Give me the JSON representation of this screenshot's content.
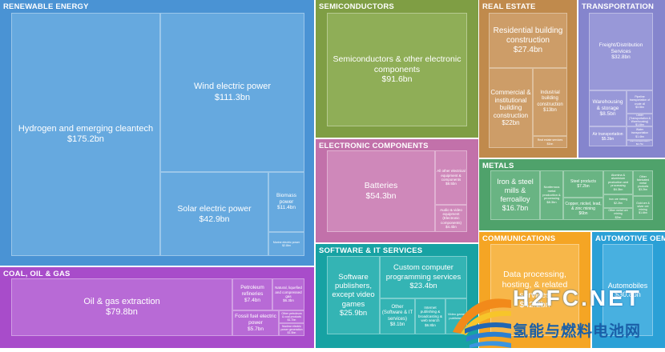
{
  "chart_data": {
    "type": "treemap",
    "value_unit": "$bn",
    "sectors": [
      {
        "name": "RENEWABLE ENERGY",
        "color": "#4a93d4",
        "tile": "#66a9df",
        "children": [
          {
            "name": "Hydrogen and emerging cleantech",
            "label": "$175.2bn",
            "value": 175.2
          },
          {
            "name": "Wind electric power",
            "label": "$111.3bn",
            "value": 111.3
          },
          {
            "name": "Solar electric power",
            "label": "$42.9bn",
            "value": 42.9
          },
          {
            "name": "Biomass power",
            "label": "$11.4bn",
            "value": 11.4
          },
          {
            "name": "Marine electric power",
            "label": "$2.8bn",
            "value": 2.8
          }
        ]
      },
      {
        "name": "COAL, OIL & GAS",
        "color": "#a84cca",
        "tile": "#b86ad6",
        "children": [
          {
            "name": "Oil & gas extraction",
            "label": "$79.8bn",
            "value": 79.8
          },
          {
            "name": "Petroleum refineries",
            "label": "$7.4bn",
            "value": 7.4
          },
          {
            "name": "Natural, liquefied and compressed gas",
            "label": "$6.3bn",
            "value": 6.3
          },
          {
            "name": "Fossil fuel electric power",
            "label": "$5.7bn",
            "value": 5.7
          },
          {
            "name": "Other petroleum & coal products",
            "label": "$1.7bn",
            "value": 1.7
          },
          {
            "name": "Nuclear electric power generation",
            "label": "$1.5bn",
            "value": 1.5
          }
        ]
      },
      {
        "name": "SEMICONDUCTORS",
        "color": "#7f9e44",
        "tile": "#8fae57",
        "children": [
          {
            "name": "Semiconductors & other electronic components",
            "label": "$91.6bn",
            "value": 91.6
          }
        ]
      },
      {
        "name": "ELECTRONIC COMPONENTS",
        "color": "#c271aa",
        "tile": "#cf88ba",
        "children": [
          {
            "name": "Batteries",
            "label": "$54.3bn",
            "value": 54.3
          },
          {
            "name": "All other electrical equipment & components",
            "label": "$8.5bn",
            "value": 8.5
          },
          {
            "name": "Audio & video equipment (Electronic components)",
            "label": "$4.4bn",
            "value": 4.4
          }
        ]
      },
      {
        "name": "SOFTWARE & IT SERVICES",
        "color": "#17a2a3",
        "tile": "#34b4b4",
        "children": [
          {
            "name": "Software publishers, except video games",
            "label": "$25.9bn",
            "value": 25.9
          },
          {
            "name": "Custom computer programming services",
            "label": "$23.4bn",
            "value": 23.4
          },
          {
            "name": "Other (Software & IT services)",
            "label": "$8.1bn",
            "value": 8.1
          },
          {
            "name": "Internet publishing & broadcasting & web search",
            "label": "$6.8bn",
            "value": 6.8
          },
          {
            "name": "Video game publishers",
            "label": "",
            "value": null
          }
        ]
      },
      {
        "name": "REAL ESTATE",
        "color": "#c08a4c",
        "tile": "#cd9d68",
        "children": [
          {
            "name": "Residential building construction",
            "label": "$27.4bn",
            "value": 27.4
          },
          {
            "name": "Commercial & institutional building construction",
            "label": "$22bn",
            "value": 22
          },
          {
            "name": "Industrial building construction",
            "label": "$13bn",
            "value": 13
          },
          {
            "name": "Real estate services",
            "label": "$1bn",
            "value": 1
          }
        ]
      },
      {
        "name": "TRANSPORTATION",
        "color": "#8585cd",
        "tile": "#9898d8",
        "children": [
          {
            "name": "Freight/Distribution Services",
            "label": "$32.8bn",
            "value": 32.8
          },
          {
            "name": "Warehousing & storage",
            "label": "$8.5bn",
            "value": 8.5
          },
          {
            "name": "Pipeline transportation of crude oil",
            "label": "$3.5bn",
            "value": 3.5
          },
          {
            "name": "Other (Transportation & Warehousing)",
            "label": "$1.6bn",
            "value": 1.6
          },
          {
            "name": "Air transportation",
            "label": "$5.3bn",
            "value": 5.3
          },
          {
            "name": "Water transportation",
            "label": "$1.4bn",
            "value": 1.4
          },
          {
            "name": "Rail transportation",
            "label": "$0.7bn",
            "value": 0.7
          }
        ]
      },
      {
        "name": "METALS",
        "color": "#4fa26b",
        "tile": "#69b483",
        "children": [
          {
            "name": "Iron & steel mills & ferroalloy",
            "label": "$16.7bn",
            "value": 16.7
          },
          {
            "name": "Nonferrous metal production & processing",
            "label": "$8.3bn",
            "value": 8.3
          },
          {
            "name": "Steel products",
            "label": "$7.2bn",
            "value": 7.2
          },
          {
            "name": "Copper, nickel, lead, & zinc mining",
            "label": "$6bn",
            "value": 6
          },
          {
            "name": "Alumina & aluminium production and processing",
            "label": "$4.3bn",
            "value": 4.3
          },
          {
            "name": "Iron ore mining",
            "label": "$2.2bn",
            "value": 2.2
          },
          {
            "name": "Other metal ore mining",
            "label": "$2bn",
            "value": 2
          },
          {
            "name": "Other fabricated metal products",
            "label": "$3.2bn",
            "value": 3.2
          },
          {
            "name": "Gold ore & silver ore mining",
            "label": "$1.6bn",
            "value": 1.6
          }
        ]
      },
      {
        "name": "COMMUNICATIONS",
        "color": "#f5a524",
        "tile": "#f7b74a",
        "children": [
          {
            "name": "Data processing, hosting, & related services",
            "label": "$42.2bn",
            "value": 42.2
          }
        ]
      },
      {
        "name": "AUTOMOTIVE OEM",
        "color": "#2ba0d6",
        "tile": "#48b0e0",
        "children": [
          {
            "name": "Automobiles",
            "label": "$30.8bn",
            "value": 30.8
          }
        ]
      }
    ]
  },
  "watermark": {
    "line1": "H2FC.NET",
    "line2": "氢能与燃料电池网"
  }
}
